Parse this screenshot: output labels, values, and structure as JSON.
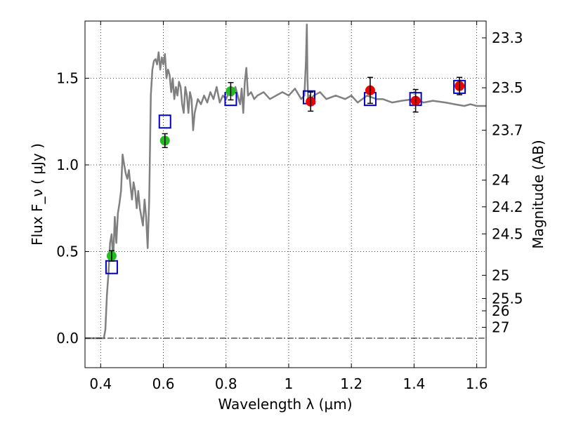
{
  "chart_data": {
    "type": "scatter",
    "xlabel": "Wavelength  λ (μm)",
    "ylabel": "Flux  F_ν  ( μJy )",
    "ylabel_right": "Magnitude (AB)",
    "xlim": [
      0.35,
      1.63
    ],
    "ylim": [
      -0.17,
      1.83
    ],
    "grid": true,
    "x_ticks": [
      0.4,
      0.6,
      0.8,
      1.0,
      1.2,
      1.4,
      1.6
    ],
    "x_tick_labels": [
      "0.4",
      "0.6",
      "0.8",
      "1",
      "1.2",
      "1.4",
      "1.6"
    ],
    "y_ticks": [
      0.0,
      0.5,
      1.0,
      1.5
    ],
    "y_tick_labels": [
      "0.0",
      "0.5",
      "1.0",
      "1.5"
    ],
    "right_ticks": [
      {
        "flux": 1.733,
        "label": "23.3"
      },
      {
        "flux": 1.445,
        "label": "23.5"
      },
      {
        "flux": 1.2,
        "label": "23.7"
      },
      {
        "flux": 0.912,
        "label": "24"
      },
      {
        "flux": 0.758,
        "label": "24.2"
      },
      {
        "flux": 0.602,
        "label": "24.5"
      },
      {
        "flux": 0.363,
        "label": "25"
      },
      {
        "flux": 0.229,
        "label": "25.5"
      },
      {
        "flux": 0.158,
        "label": "26"
      },
      {
        "flux": 0.063,
        "label": "27"
      }
    ],
    "colors": {
      "model": "#808080",
      "green": "#22bb22",
      "red": "#ee0000",
      "box": "#0000cc",
      "errorbar": "#000000"
    },
    "series": [
      {
        "kind": "line",
        "x": [
          0.35,
          0.41,
          0.415,
          0.42,
          0.425,
          0.43,
          0.435,
          0.44,
          0.445,
          0.45,
          0.455,
          0.46,
          0.465,
          0.47,
          0.475,
          0.48,
          0.485,
          0.49,
          0.495,
          0.5,
          0.505,
          0.51,
          0.515,
          0.52,
          0.525,
          0.53,
          0.535,
          0.54,
          0.545,
          0.55,
          0.555,
          0.56,
          0.565,
          0.57,
          0.575,
          0.58,
          0.585,
          0.59,
          0.595,
          0.6,
          0.605,
          0.61,
          0.615,
          0.62,
          0.625,
          0.63,
          0.635,
          0.64,
          0.645,
          0.65,
          0.655,
          0.66,
          0.665,
          0.67,
          0.675,
          0.68,
          0.685,
          0.69,
          0.695,
          0.7,
          0.71,
          0.72,
          0.73,
          0.74,
          0.75,
          0.76,
          0.77,
          0.78,
          0.79,
          0.8,
          0.81,
          0.82,
          0.83,
          0.84,
          0.845,
          0.85,
          0.855,
          0.86,
          0.865,
          0.87,
          0.88,
          0.89,
          0.9,
          0.92,
          0.94,
          0.96,
          0.98,
          1.0,
          1.02,
          1.04,
          1.05,
          1.055,
          1.058,
          1.06,
          1.062,
          1.065,
          1.07,
          1.08,
          1.1,
          1.12,
          1.15,
          1.18,
          1.2,
          1.22,
          1.25,
          1.28,
          1.3,
          1.33,
          1.36,
          1.4,
          1.43,
          1.46,
          1.5,
          1.53,
          1.56,
          1.58,
          1.6,
          1.63
        ],
        "y": [
          0.0,
          0.0,
          0.05,
          0.25,
          0.38,
          0.55,
          0.6,
          0.45,
          0.7,
          0.55,
          0.72,
          0.78,
          0.85,
          1.06,
          1.0,
          0.95,
          0.92,
          0.97,
          0.88,
          0.8,
          0.9,
          0.85,
          0.75,
          0.85,
          0.75,
          0.7,
          0.65,
          0.8,
          0.7,
          0.52,
          0.8,
          1.4,
          1.55,
          1.6,
          1.61,
          1.58,
          1.65,
          1.55,
          1.62,
          1.58,
          1.64,
          1.5,
          1.55,
          1.52,
          1.42,
          1.5,
          1.38,
          1.45,
          1.4,
          1.48,
          1.45,
          1.35,
          1.3,
          1.45,
          1.4,
          1.3,
          1.42,
          1.38,
          1.2,
          1.3,
          1.38,
          1.35,
          1.4,
          1.36,
          1.42,
          1.38,
          1.45,
          1.36,
          1.4,
          1.38,
          1.42,
          1.4,
          1.45,
          1.38,
          1.35,
          1.44,
          1.3,
          1.48,
          1.56,
          1.4,
          1.42,
          1.38,
          1.4,
          1.42,
          1.38,
          1.4,
          1.42,
          1.4,
          1.44,
          1.38,
          1.4,
          1.6,
          1.81,
          1.5,
          1.38,
          1.4,
          1.38,
          1.4,
          1.42,
          1.38,
          1.4,
          1.38,
          1.4,
          1.36,
          1.4,
          1.38,
          1.38,
          1.36,
          1.37,
          1.38,
          1.36,
          1.37,
          1.36,
          1.35,
          1.34,
          1.35,
          1.34,
          1.34
        ]
      },
      {
        "kind": "points",
        "marker": "square",
        "x": [
          0.435,
          0.605,
          0.815,
          1.065,
          1.26,
          1.405,
          1.545
        ],
        "y": [
          0.41,
          1.25,
          1.38,
          1.39,
          1.38,
          1.38,
          1.45
        ]
      },
      {
        "kind": "points",
        "marker": "circle-green",
        "x": [
          0.435,
          0.605,
          0.815
        ],
        "y": [
          0.475,
          1.14,
          1.425
        ],
        "yerr": [
          0.03,
          0.04,
          0.05
        ]
      },
      {
        "kind": "points",
        "marker": "circle-red",
        "x": [
          1.07,
          1.26,
          1.405,
          1.545
        ],
        "y": [
          1.365,
          1.43,
          1.37,
          1.455
        ],
        "yerr": [
          0.055,
          0.075,
          0.065,
          0.05
        ]
      }
    ]
  }
}
